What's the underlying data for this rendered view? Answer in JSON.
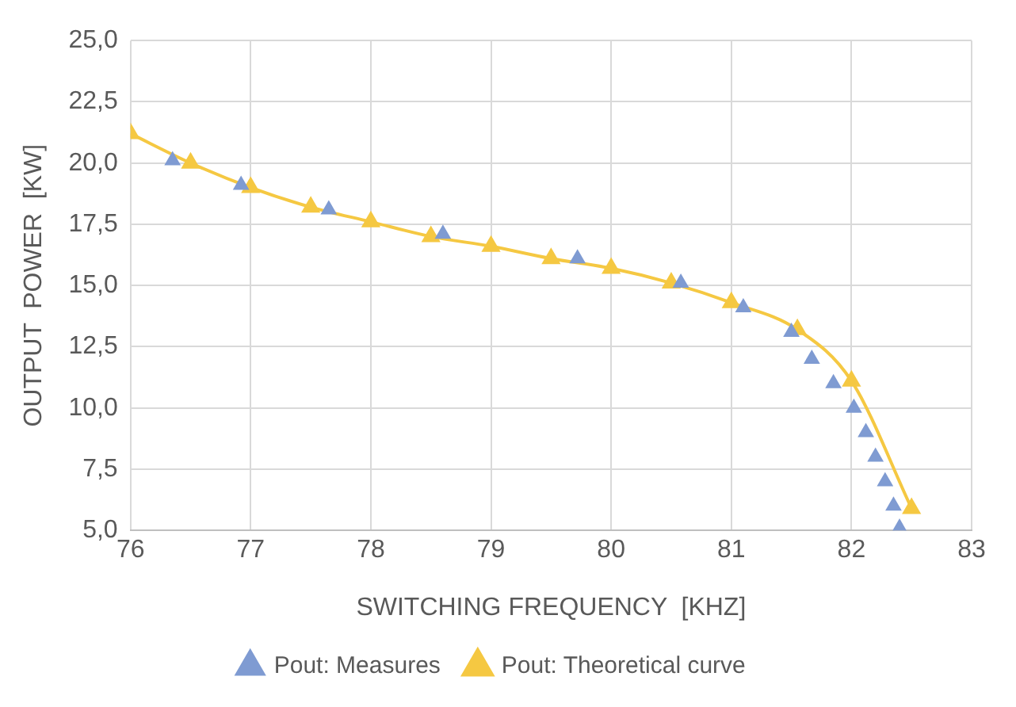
{
  "chart_data": {
    "type": "scatter",
    "xlabel": "SWITCHING FREQUENCY  [KHZ]",
    "ylabel": "OUTPUT  POWER  [KW]",
    "xlim": [
      76,
      83
    ],
    "xticks": [
      76,
      77,
      78,
      79,
      80,
      81,
      82,
      83
    ],
    "ylim": [
      5,
      25
    ],
    "yticks": [
      {
        "value": 5,
        "label": "5,0"
      },
      {
        "value": 7.5,
        "label": "7,5"
      },
      {
        "value": 10,
        "label": "10,0"
      },
      {
        "value": 12.5,
        "label": "12,5"
      },
      {
        "value": 15,
        "label": "15,0"
      },
      {
        "value": 17.5,
        "label": "17,5"
      },
      {
        "value": 20,
        "label": "20,0"
      },
      {
        "value": 22.5,
        "label": "22,5"
      },
      {
        "value": 25,
        "label": "25,0"
      }
    ],
    "grid": true,
    "legend": "bottom",
    "marker": "triangle",
    "series": [
      {
        "name": "Pout: Measures",
        "type": "scatter",
        "color": "#7f9bd2",
        "x": [
          76.35,
          76.92,
          77.65,
          78.6,
          79.72,
          80.58,
          81.1,
          81.5,
          81.67,
          81.85,
          82.02,
          82.12,
          82.2,
          82.28,
          82.35,
          82.4
        ],
        "values": [
          20.1,
          19.1,
          18.1,
          17.1,
          16.1,
          15.1,
          14.1,
          13.1,
          12.0,
          11.0,
          10.0,
          9.0,
          8.0,
          7.0,
          6.0,
          5.1
        ]
      },
      {
        "name": "Pout: Theoretical curve",
        "type": "line",
        "color": "#f5c842",
        "x": [
          76,
          76.5,
          77,
          77.5,
          78,
          78.5,
          79,
          79.5,
          80,
          80.5,
          81,
          81.55,
          82.0,
          82.5
        ],
        "values": [
          21.2,
          20.0,
          19.0,
          18.2,
          17.6,
          17.0,
          16.6,
          16.1,
          15.7,
          15.1,
          14.3,
          13.2,
          11.1,
          5.9
        ]
      }
    ]
  }
}
